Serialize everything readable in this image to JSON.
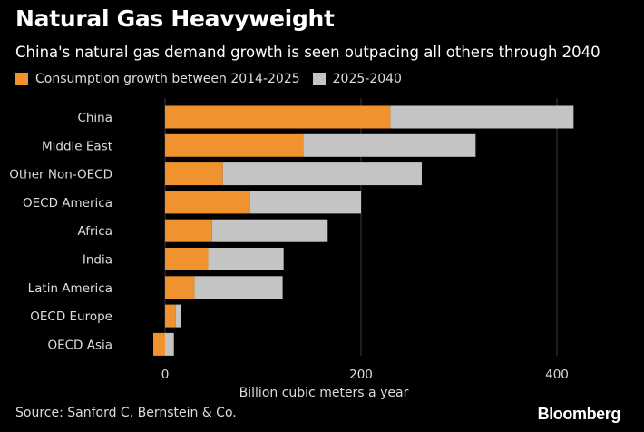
{
  "title": "Natural Gas Heavyweight",
  "subtitle": "China's natural gas demand growth is seen outpacing all others through 2040",
  "source": "Source: Sanford C. Bernstein & Co.",
  "brand": "Bloomberg",
  "colors": {
    "series1": "#f0922e",
    "series2": "#c4c4c4",
    "grid": "#3a3a3a",
    "background": "#000000"
  },
  "chart_data": {
    "type": "bar",
    "orientation": "horizontal",
    "stacked": true,
    "categories": [
      "China",
      "Middle East",
      "Other Non-OECD",
      "OECD America",
      "Africa",
      "India",
      "Latin America",
      "OECD Europe",
      "OECD Asia"
    ],
    "series": [
      {
        "name": "Consumption growth between 2014-2025",
        "values": [
          230,
          141,
          59,
          87,
          48,
          44,
          30,
          11,
          -12
        ]
      },
      {
        "name": "2025-2040",
        "values": [
          187,
          176,
          203,
          113,
          118,
          77,
          90,
          5,
          9
        ]
      }
    ],
    "xlabel": "Billion cubic meters a year",
    "xlim": [
      -20,
      420
    ],
    "xticks": [
      0,
      200,
      400
    ],
    "grid": true,
    "legend": "top-left"
  }
}
